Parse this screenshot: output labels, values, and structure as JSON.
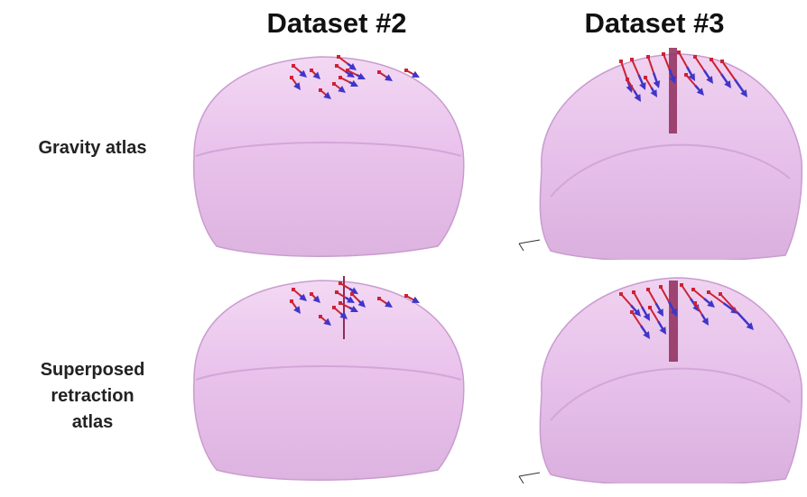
{
  "columns": [
    {
      "title": "Dataset #2"
    },
    {
      "title": "Dataset #3"
    }
  ],
  "rows": [
    {
      "label_lines": [
        "Gravity atlas"
      ]
    },
    {
      "label_lines": [
        "Superposed",
        "retraction",
        "atlas"
      ]
    }
  ],
  "colors": {
    "surface": "#e9c3ec",
    "surface_edge": "#caa0cf",
    "arrow_red": "#cc2233",
    "arrow_blue": "#4035c8",
    "retractor": "#8e2c5a"
  }
}
